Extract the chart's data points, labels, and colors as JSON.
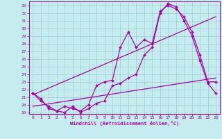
{
  "xlabel": "Windchill (Refroidissement éolien,°C)",
  "background_color": "#c5ecee",
  "grid_color": "#9ccdd4",
  "line_color": "#aa00aa",
  "xlim": [
    -0.5,
    23.5
  ],
  "ylim": [
    18.8,
    33.5
  ],
  "xticks": [
    0,
    1,
    2,
    3,
    4,
    5,
    6,
    7,
    8,
    9,
    10,
    11,
    12,
    13,
    14,
    15,
    16,
    17,
    18,
    19,
    20,
    21,
    22,
    23
  ],
  "yticks": [
    19,
    20,
    21,
    22,
    23,
    24,
    25,
    26,
    27,
    28,
    29,
    30,
    31,
    32,
    33
  ],
  "line1_x": [
    0,
    1,
    2,
    3,
    4,
    5,
    6,
    7,
    8,
    9,
    10,
    11,
    12,
    13,
    14,
    15,
    16,
    17,
    18,
    19,
    20,
    21,
    22,
    23
  ],
  "line1_y": [
    21.5,
    20.5,
    19.8,
    19.2,
    19.8,
    19.5,
    19.2,
    20.0,
    22.5,
    23.0,
    23.2,
    27.5,
    29.5,
    27.5,
    28.5,
    28.0,
    32.2,
    33.0,
    32.5,
    31.5,
    29.5,
    26.5,
    23.0,
    23.0
  ],
  "line2_x": [
    0,
    1,
    2,
    3,
    4,
    5,
    6,
    7,
    8,
    9,
    10,
    11,
    12,
    13,
    14,
    15,
    16,
    17,
    18,
    19,
    20,
    21,
    22,
    23
  ],
  "line2_y": [
    21.5,
    20.8,
    19.5,
    19.2,
    19.0,
    19.8,
    19.0,
    19.5,
    20.2,
    20.5,
    22.5,
    22.8,
    23.5,
    24.0,
    26.5,
    27.5,
    32.0,
    33.2,
    32.8,
    31.0,
    29.0,
    25.8,
    22.8,
    21.5
  ],
  "line3_x": [
    0,
    23
  ],
  "line3_y": [
    21.3,
    31.5
  ],
  "line4_x": [
    0,
    23
  ],
  "line4_y": [
    19.8,
    23.5
  ]
}
